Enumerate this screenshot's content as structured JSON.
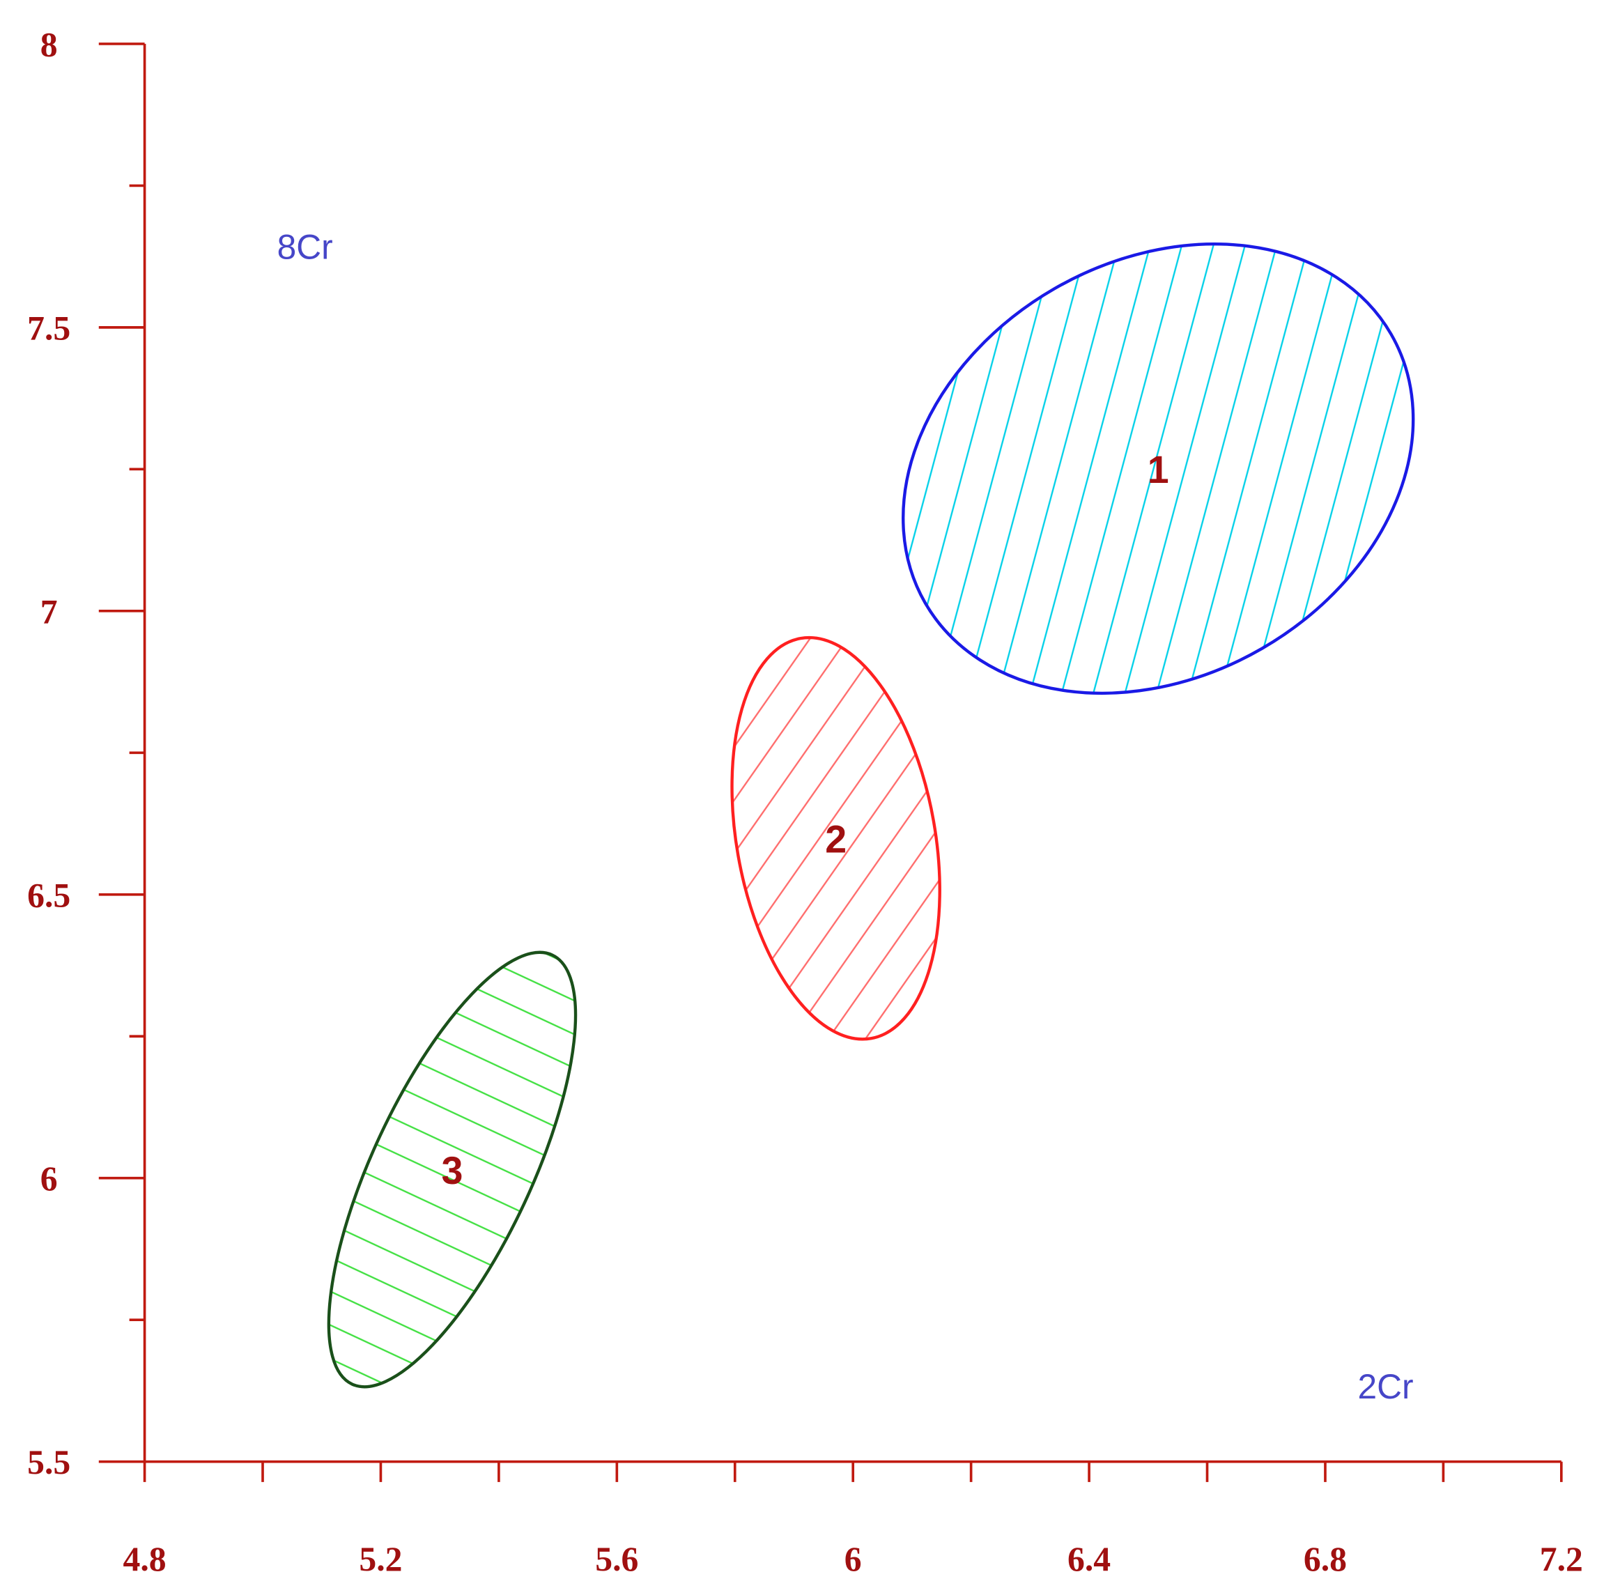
{
  "chart_data": {
    "type": "ellipse",
    "xlim": [
      4.8,
      7.2
    ],
    "xticks": [
      4.8,
      5.2,
      5.6,
      6,
      6.4,
      6.8,
      7.2
    ],
    "xminor": [
      5.0,
      5.4,
      5.8,
      6.2,
      6.6,
      7.0
    ],
    "ylim": [
      5.5,
      8
    ],
    "yticks": [
      5.5,
      6,
      6.5,
      7,
      7.5,
      8
    ],
    "yminor": [
      5.75,
      6.25,
      6.75,
      7.25,
      7.75
    ],
    "axis_color": "#c01a10",
    "annotations": [
      "8Cr",
      "2Cr"
    ],
    "ellipses": [
      {
        "name": "1",
        "x": 6.517,
        "y": 7.251,
        "semi_x": 0.432,
        "semi_y": 0.396,
        "angle": -30,
        "color": "#1a1ae6",
        "hatch_color": "#00d0e8",
        "hatch": "diagonal-up"
      },
      {
        "name": "2",
        "x": 5.971,
        "y": 6.599,
        "semi_x": 0.176,
        "semi_y": 0.354,
        "angle": 80,
        "color": "#ff2020",
        "hatch_color": "#ff6a6a",
        "hatch": "diagonal-down"
      },
      {
        "name": "3",
        "x": 5.321,
        "y": 6.015,
        "semi_x": 0.209,
        "semi_y": 0.383,
        "angle": -65,
        "color": "#1a501a",
        "hatch_color": "#40e040",
        "hatch": "vertical"
      }
    ]
  }
}
